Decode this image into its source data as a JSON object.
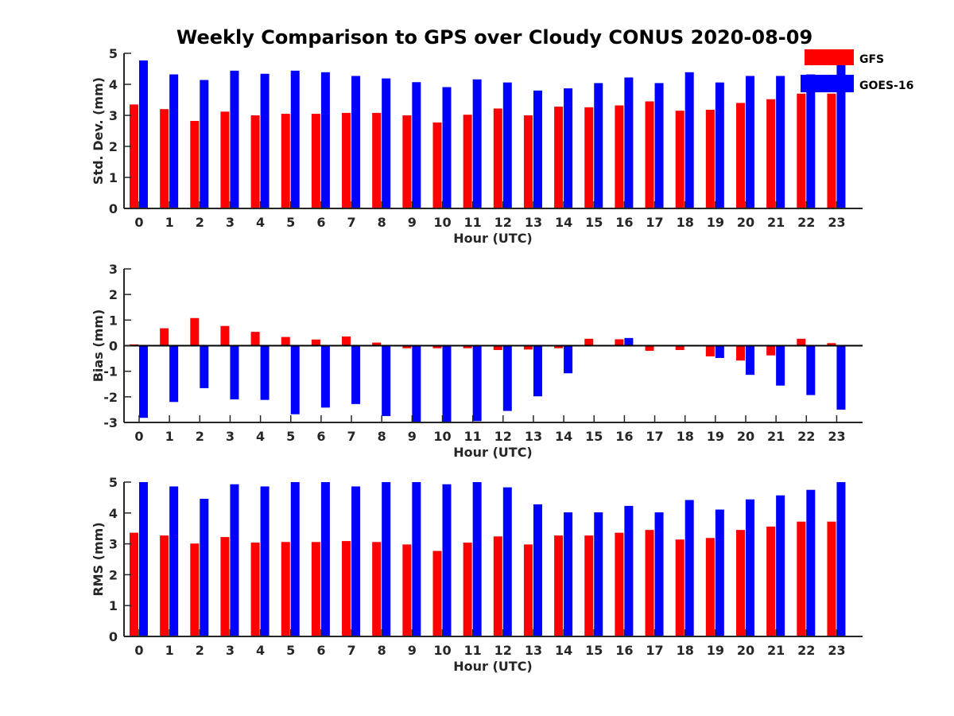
{
  "title": "Weekly Comparison to GPS over Cloudy CONUS 2020-08-09",
  "legend": {
    "placement": "top-right",
    "entries": [
      {
        "name": "GFS",
        "color": "#ff0000"
      },
      {
        "name": "GOES-16",
        "color": "#0000ff"
      }
    ]
  },
  "chart_data": [
    {
      "type": "bar",
      "xlabel": "Hour (UTC)",
      "ylabel": "Std. Dev. (mm)",
      "ylim": [
        0,
        5
      ],
      "yticks": [
        0,
        1,
        2,
        3,
        4,
        5
      ],
      "categories": [
        "0",
        "1",
        "2",
        "3",
        "4",
        "5",
        "6",
        "7",
        "8",
        "9",
        "10",
        "11",
        "12",
        "13",
        "14",
        "15",
        "16",
        "17",
        "18",
        "19",
        "20",
        "21",
        "22",
        "23"
      ],
      "series": [
        {
          "name": "GFS",
          "color": "#ff0000",
          "values": [
            3.35,
            3.2,
            2.82,
            3.12,
            3.0,
            3.05,
            3.05,
            3.08,
            3.08,
            3.0,
            2.77,
            3.02,
            3.22,
            3.0,
            3.28,
            3.26,
            3.32,
            3.45,
            3.15,
            3.18,
            3.4,
            3.52,
            3.7,
            3.7
          ]
        },
        {
          "name": "GOES-16",
          "color": "#0000ff",
          "values": [
            4.77,
            4.32,
            4.14,
            4.44,
            4.34,
            4.44,
            4.39,
            4.27,
            4.19,
            4.07,
            3.91,
            4.16,
            4.06,
            3.8,
            3.87,
            4.04,
            4.22,
            4.04,
            4.39,
            4.06,
            4.27,
            4.27,
            4.32,
            5.0
          ]
        }
      ]
    },
    {
      "type": "bar",
      "xlabel": "Hour (UTC)",
      "ylabel": "Bias (mm)",
      "ylim": [
        -3,
        3
      ],
      "yticks": [
        -3,
        -2,
        -1,
        0,
        1,
        2,
        3
      ],
      "categories": [
        "0",
        "1",
        "2",
        "3",
        "4",
        "5",
        "6",
        "7",
        "8",
        "9",
        "10",
        "11",
        "12",
        "13",
        "14",
        "15",
        "16",
        "17",
        "18",
        "19",
        "20",
        "21",
        "22",
        "23"
      ],
      "series": [
        {
          "name": "GFS",
          "color": "#ff0000",
          "values": [
            0.05,
            0.68,
            1.08,
            0.77,
            0.54,
            0.34,
            0.24,
            0.36,
            0.12,
            -0.1,
            -0.1,
            -0.1,
            -0.17,
            -0.15,
            -0.1,
            0.27,
            0.25,
            -0.2,
            -0.17,
            -0.42,
            -0.58,
            -0.38,
            0.27,
            0.1
          ]
        },
        {
          "name": "GOES-16",
          "color": "#0000ff",
          "values": [
            -2.82,
            -2.2,
            -1.66,
            -2.1,
            -2.12,
            -2.68,
            -2.42,
            -2.28,
            -2.75,
            -3.0,
            -3.0,
            -2.95,
            -2.55,
            -1.98,
            -1.08,
            0,
            0.3,
            0,
            0,
            -0.48,
            -1.14,
            -1.56,
            -1.93,
            -2.5
          ]
        }
      ]
    },
    {
      "type": "bar",
      "xlabel": "Hour (UTC)",
      "ylabel": "RMS (mm)",
      "ylim": [
        0,
        5
      ],
      "yticks": [
        0,
        1,
        2,
        3,
        4,
        5
      ],
      "categories": [
        "0",
        "1",
        "2",
        "3",
        "4",
        "5",
        "6",
        "7",
        "8",
        "9",
        "10",
        "11",
        "12",
        "13",
        "14",
        "15",
        "16",
        "17",
        "18",
        "19",
        "20",
        "21",
        "22",
        "23"
      ],
      "series": [
        {
          "name": "GFS",
          "color": "#ff0000",
          "values": [
            3.36,
            3.27,
            3.01,
            3.22,
            3.04,
            3.06,
            3.06,
            3.09,
            3.06,
            2.98,
            2.77,
            3.04,
            3.24,
            2.98,
            3.27,
            3.27,
            3.36,
            3.45,
            3.14,
            3.19,
            3.45,
            3.56,
            3.72,
            3.72
          ]
        },
        {
          "name": "GOES-16",
          "color": "#0000ff",
          "values": [
            5.0,
            4.86,
            4.46,
            4.93,
            4.86,
            5.0,
            5.0,
            4.86,
            5.0,
            5.0,
            4.93,
            5.0,
            4.83,
            4.28,
            4.02,
            4.02,
            4.23,
            4.02,
            4.42,
            4.11,
            4.44,
            4.57,
            4.75,
            5.0
          ]
        }
      ]
    }
  ]
}
